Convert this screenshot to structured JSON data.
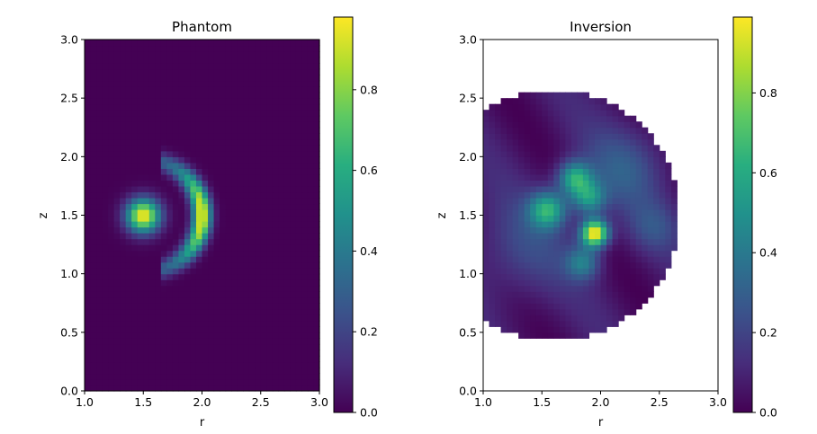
{
  "chart_data": [
    {
      "type": "heatmap",
      "title": "Phantom",
      "xlabel": "r",
      "ylabel": "z",
      "xlim": [
        1.0,
        3.0
      ],
      "ylim": [
        0.0,
        3.0
      ],
      "xticks": [
        "1.0",
        "1.5",
        "2.0",
        "2.5",
        "3.0"
      ],
      "yticks": [
        "0.0",
        "0.5",
        "1.0",
        "1.5",
        "2.0",
        "2.5",
        "3.0"
      ],
      "colormap": "viridis",
      "colorbar": {
        "range": [
          0.0,
          0.98
        ],
        "ticks": [
          "0.0",
          "0.2",
          "0.4",
          "0.6",
          "0.8"
        ]
      },
      "features": [
        {
          "shape": "gaussian-spot",
          "r": 1.5,
          "z": 1.5,
          "peak": 0.98
        },
        {
          "shape": "crescent-arc",
          "r": 2.0,
          "z": 1.5,
          "radius": 0.5,
          "peak": 0.98
        }
      ]
    },
    {
      "type": "heatmap",
      "title": "Inversion",
      "xlabel": "r",
      "ylabel": "z",
      "xlim": [
        1.0,
        3.0
      ],
      "ylim": [
        0.0,
        3.0
      ],
      "xticks": [
        "1.0",
        "1.5",
        "2.0",
        "2.5",
        "3.0"
      ],
      "yticks": [
        "0.0",
        "0.5",
        "1.0",
        "1.5",
        "2.0",
        "2.5",
        "3.0"
      ],
      "colormap": "viridis",
      "colorbar": {
        "range": [
          0.0,
          0.99
        ],
        "ticks": [
          "0.0",
          "0.2",
          "0.4",
          "0.6",
          "0.8"
        ]
      },
      "valid_region": {
        "shape": "disk",
        "center": [
          1.6,
          1.5
        ],
        "radius": 1.07
      },
      "features": [
        {
          "shape": "gaussian-spot",
          "r": 1.95,
          "z": 1.35,
          "peak": 0.99
        },
        {
          "shape": "gaussian-spot",
          "r": 1.55,
          "z": 1.55,
          "peak": 0.6
        },
        {
          "shape": "gaussian-spot",
          "r": 1.75,
          "z": 1.8,
          "peak": 0.6
        }
      ]
    }
  ]
}
